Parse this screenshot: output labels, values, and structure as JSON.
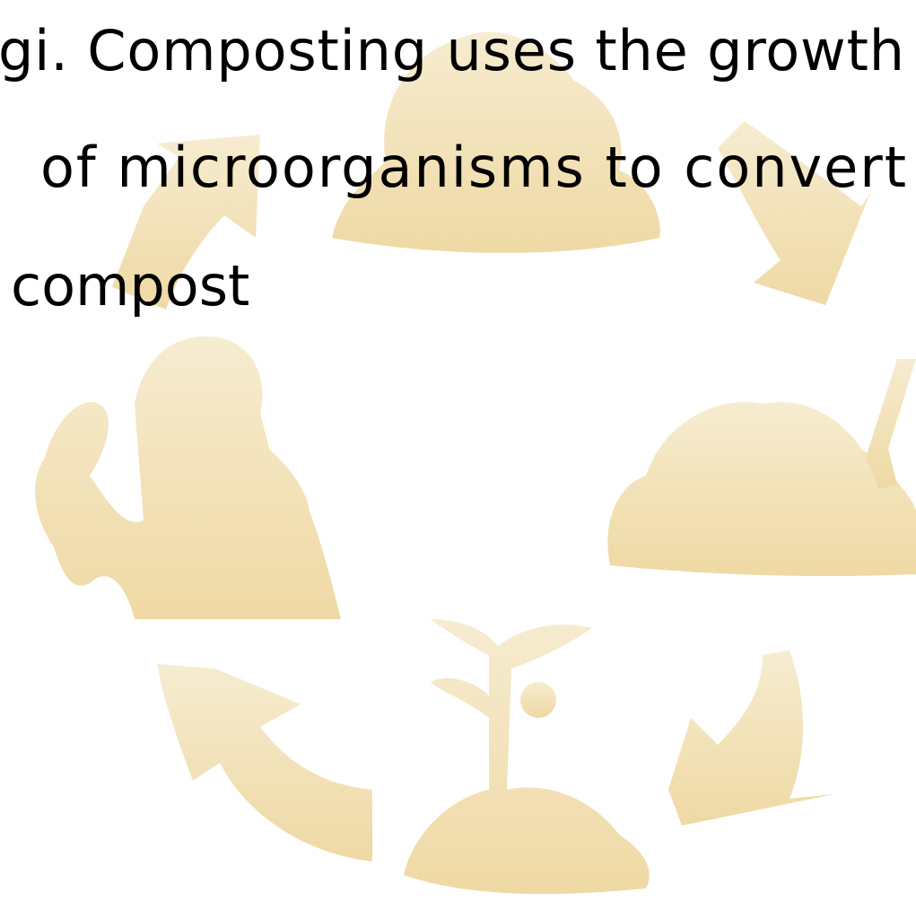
{
  "text_lines": [
    "gi. Composting uses the growth",
    "of microorganisms to convert",
    "compost"
  ]
}
